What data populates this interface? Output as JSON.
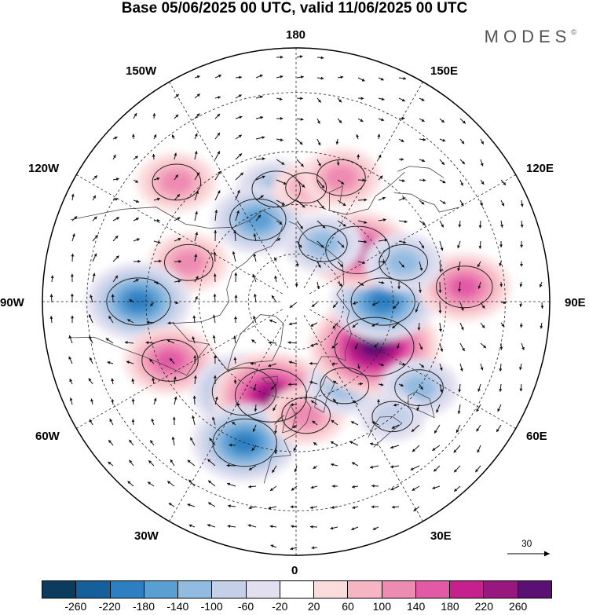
{
  "header": {
    "title": "Base 05/06/2025 00 UTC, valid 11/06/2025 00 UTC",
    "brand": "MODES",
    "brand_mark": "©"
  },
  "map": {
    "projection": "north-polar-stereographic",
    "longitude_labels": {
      "lon_180": "180",
      "lon_150e": "150E",
      "lon_120e": "120E",
      "lon_90e": "90E",
      "lon_60e": "60E",
      "lon_30e": "30E",
      "lon_0": "0",
      "lon_30w": "30W",
      "lon_60w": "60W",
      "lon_90w": "90W",
      "lon_120w": "120W",
      "lon_150w": "150W"
    },
    "reference_vector_label": "30",
    "anomaly_centers": [
      {
        "lon": -170,
        "lat": 55,
        "sign": "negative",
        "level": 2
      },
      {
        "lon": -155,
        "lat": 62,
        "sign": "negative",
        "level": 3
      },
      {
        "lon": 175,
        "lat": 55,
        "sign": "positive",
        "level": 1
      },
      {
        "lon": 160,
        "lat": 50,
        "sign": "positive",
        "level": 2
      },
      {
        "lon": -135,
        "lat": 40,
        "sign": "positive",
        "level": 2
      },
      {
        "lon": -110,
        "lat": 55,
        "sign": "positive",
        "level": 2
      },
      {
        "lon": -90,
        "lat": 43,
        "sign": "negative",
        "level": 4
      },
      {
        "lon": -65,
        "lat": 48,
        "sign": "positive",
        "level": 3
      },
      {
        "lon": -30,
        "lat": 58,
        "sign": "negative",
        "level": 4
      },
      {
        "lon": -15,
        "lat": 60,
        "sign": "positive",
        "level": 5
      },
      {
        "lon": -20,
        "lat": 45,
        "sign": "negative",
        "level": 4
      },
      {
        "lon": 5,
        "lat": 55,
        "sign": "positive",
        "level": 2
      },
      {
        "lon": 30,
        "lat": 60,
        "sign": "negative",
        "level": 2
      },
      {
        "lon": 60,
        "lat": 62,
        "sign": "positive",
        "level": 6
      },
      {
        "lon": 90,
        "lat": 63,
        "sign": "negative",
        "level": 4
      },
      {
        "lon": 130,
        "lat": 65,
        "sign": "positive",
        "level": 4
      },
      {
        "lon": 155,
        "lat": 70,
        "sign": "negative",
        "level": 2
      },
      {
        "lon": 95,
        "lat": 40,
        "sign": "positive",
        "level": 3
      },
      {
        "lon": 55,
        "lat": 45,
        "sign": "negative",
        "level": 2
      },
      {
        "lon": 110,
        "lat": 55,
        "sign": "negative",
        "level": 2
      },
      {
        "lon": 40,
        "lat": 45,
        "sign": "negative",
        "level": 1
      }
    ]
  },
  "colorbar": {
    "colors": [
      "#0d3b5e",
      "#15609a",
      "#2e7fc1",
      "#5a9fd4",
      "#92bbe0",
      "#c4d0e8",
      "#e2e0f0",
      "#ffffff",
      "#fbdcdd",
      "#f6b5c3",
      "#ee8bb3",
      "#e25aa6",
      "#c61f8e",
      "#97197f",
      "#5b1074"
    ],
    "tick_labels": [
      "-260",
      "-220",
      "-180",
      "-140",
      "-100",
      "-60",
      "-20",
      "20",
      "60",
      "100",
      "140",
      "180",
      "220",
      "260"
    ]
  }
}
